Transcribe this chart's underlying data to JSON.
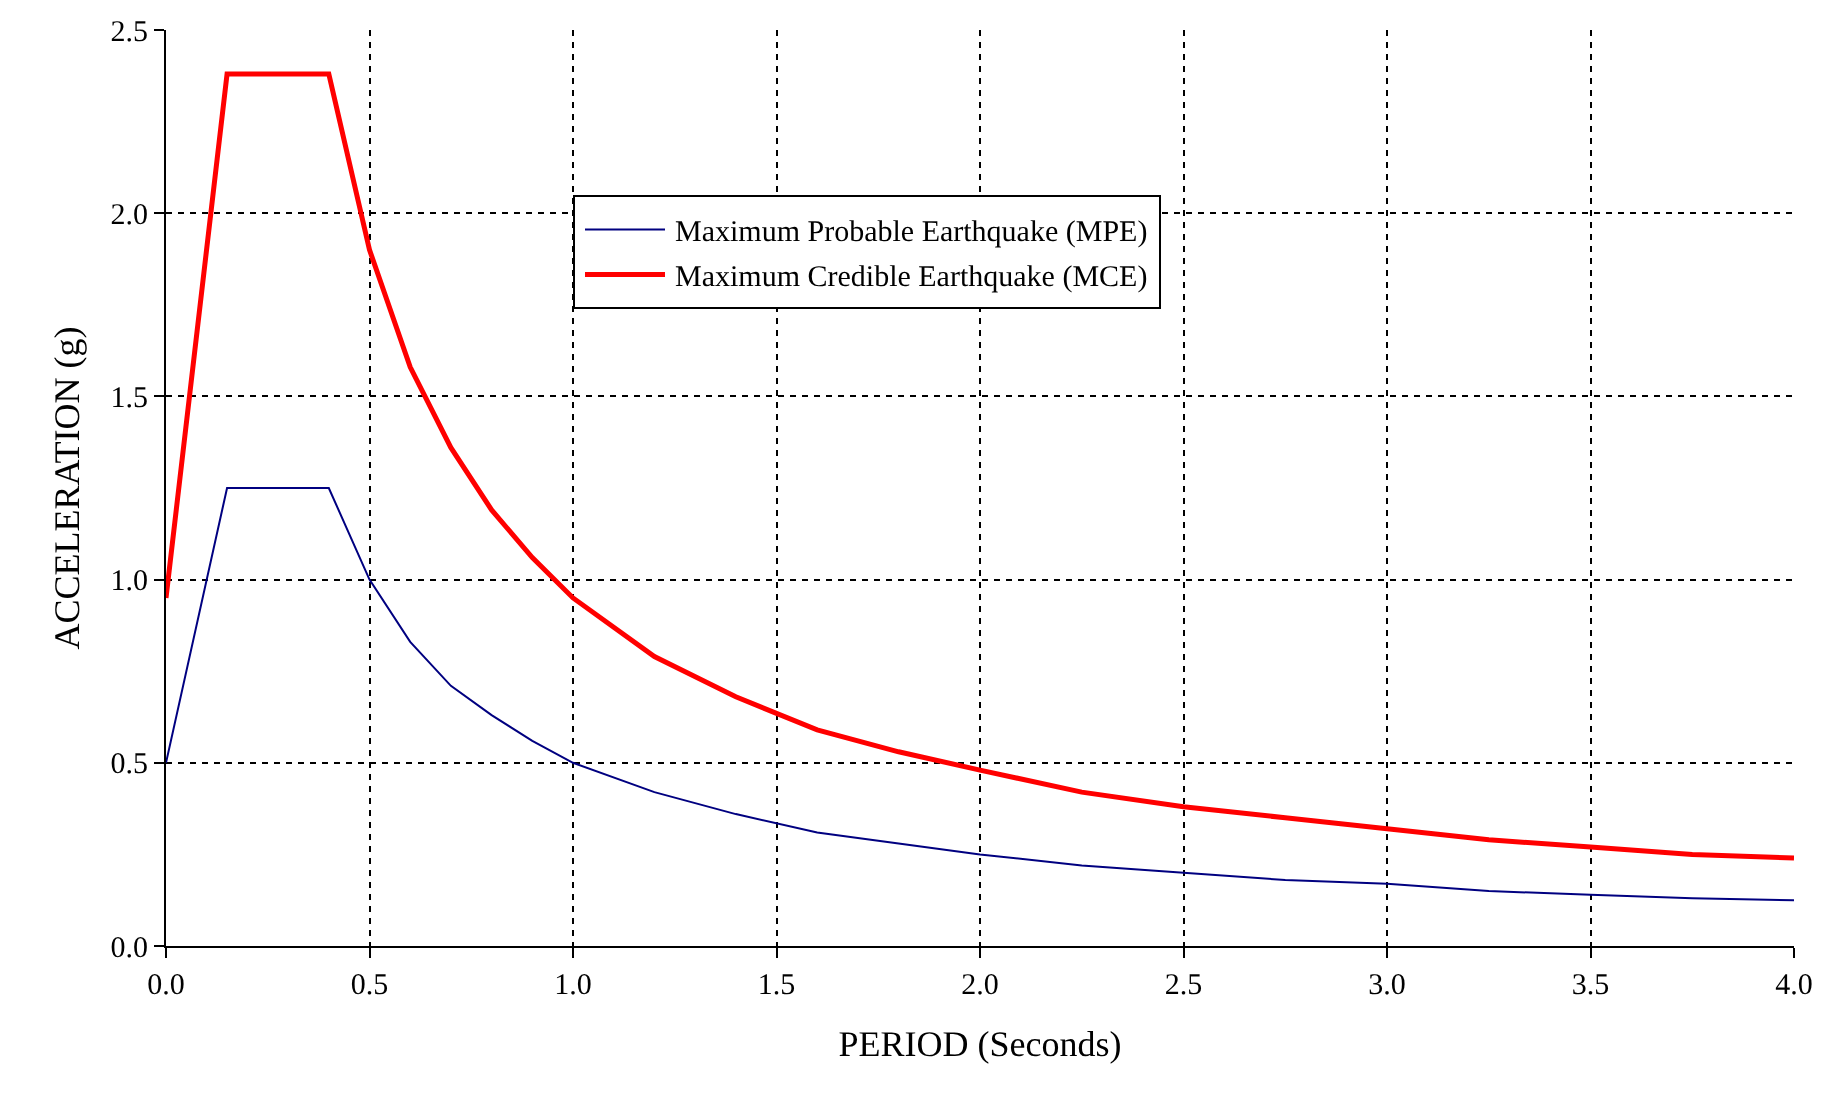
{
  "chart_data": {
    "type": "line",
    "xlabel": "PERIOD (Seconds)",
    "ylabel": "ACCELERATION (g)",
    "x": [
      0,
      0.15,
      0.4,
      0.5,
      0.6,
      0.7,
      0.8,
      0.9,
      1.0,
      1.2,
      1.4,
      1.6,
      1.8,
      2.0,
      2.25,
      2.5,
      2.75,
      3.0,
      3.25,
      3.5,
      3.75,
      4.0
    ],
    "series": [
      {
        "name": "Maximum Probable Earthquake (MPE)",
        "color": "#000080",
        "values": [
          0.5,
          1.25,
          1.25,
          1.0,
          0.83,
          0.71,
          0.63,
          0.56,
          0.5,
          0.42,
          0.36,
          0.31,
          0.28,
          0.25,
          0.22,
          0.2,
          0.18,
          0.17,
          0.15,
          0.14,
          0.13,
          0.125
        ]
      },
      {
        "name": "Maximum Credible Earthquake (MCE)",
        "color": "#ff0000",
        "values": [
          0.95,
          2.38,
          2.38,
          1.9,
          1.58,
          1.36,
          1.19,
          1.06,
          0.95,
          0.79,
          0.68,
          0.59,
          0.53,
          0.48,
          0.42,
          0.38,
          0.35,
          0.32,
          0.29,
          0.27,
          0.25,
          0.24
        ]
      }
    ],
    "xlim": [
      0,
      4
    ],
    "ylim": [
      0,
      2.5
    ],
    "xticks": [
      {
        "value": 0,
        "label": "0.0"
      },
      {
        "value": 0.5,
        "label": "0.5"
      },
      {
        "value": 1,
        "label": "1.0"
      },
      {
        "value": 1.5,
        "label": "1.5"
      },
      {
        "value": 2,
        "label": "2.0"
      },
      {
        "value": 2.5,
        "label": "2.5"
      },
      {
        "value": 3,
        "label": "3.0"
      },
      {
        "value": 3.5,
        "label": "3.5"
      },
      {
        "value": 4,
        "label": "4.0"
      }
    ],
    "yticks": [
      {
        "value": 0,
        "label": "0.0"
      },
      {
        "value": 0.5,
        "label": "0.5"
      },
      {
        "value": 1,
        "label": "1.0"
      },
      {
        "value": 1.5,
        "label": "1.5"
      },
      {
        "value": 2,
        "label": "2.0"
      },
      {
        "value": 2.5,
        "label": "2.5"
      }
    ],
    "grid": true,
    "legend": "top",
    "marker": "none",
    "line_style": "solid"
  }
}
